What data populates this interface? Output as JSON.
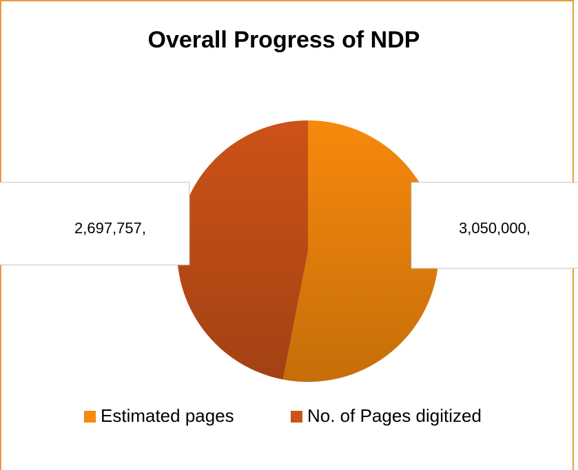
{
  "chart_data": {
    "type": "pie",
    "title": "Overall Progress of NDP",
    "categories": [
      "Estimated pages",
      "No. of Pages digitized"
    ],
    "values": [
      3050000,
      2697757
    ],
    "value_labels": [
      "3,050,000,",
      "2,697,757,"
    ],
    "colors": [
      "#f7890c",
      "#cc5218"
    ],
    "legend": "bottom"
  }
}
